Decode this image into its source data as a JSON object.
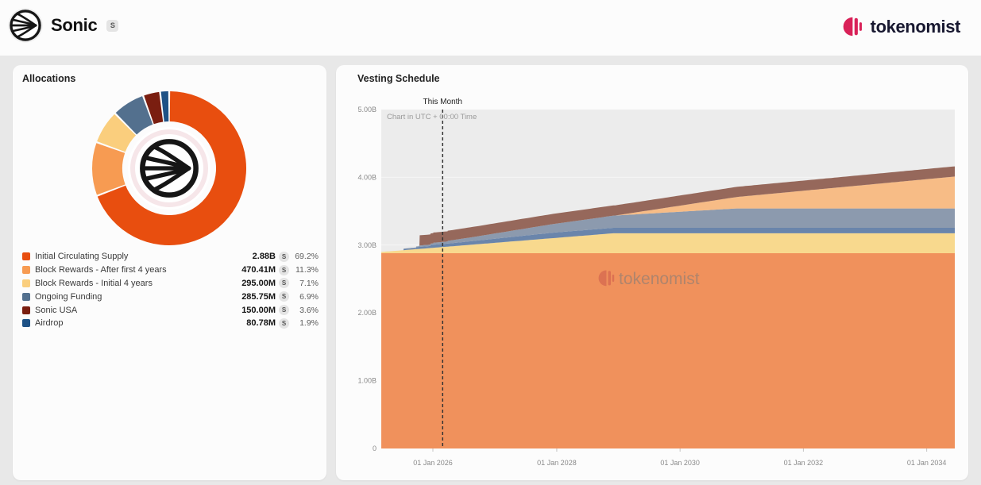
{
  "header": {
    "app_title": "Sonic",
    "app_badge": "S",
    "brand": "tokenomist",
    "brand_color": "#D92158"
  },
  "allocations": {
    "title": "Allocations",
    "token_symbol": "S",
    "items": [
      {
        "label": "Initial Circulating Supply",
        "value": "2.88B",
        "pct": "69.2%",
        "pct_num": 69.2,
        "color": "#E84E0F"
      },
      {
        "label": "Block Rewards - After first 4 years",
        "value": "470.41M",
        "pct": "11.3%",
        "pct_num": 11.3,
        "color": "#F79B52"
      },
      {
        "label": "Block Rewards - Initial 4 years",
        "value": "295.00M",
        "pct": "7.1%",
        "pct_num": 7.1,
        "color": "#FACE7D"
      },
      {
        "label": "Ongoing Funding",
        "value": "285.75M",
        "pct": "6.9%",
        "pct_num": 6.9,
        "color": "#53708E"
      },
      {
        "label": "Sonic USA",
        "value": "150.00M",
        "pct": "3.6%",
        "pct_num": 3.6,
        "color": "#7A1E10"
      },
      {
        "label": "Airdrop",
        "value": "80.78M",
        "pct": "1.9%",
        "pct_num": 1.9,
        "color": "#1E5286"
      }
    ]
  },
  "vesting": {
    "title": "Vesting Schedule",
    "note": "Chart in UTC + 00:00 Time",
    "this_month_label": "This Month",
    "this_month_x": 0.107,
    "watermark": "tokenomist"
  },
  "chart_data": [
    {
      "type": "pie",
      "title": "Allocations",
      "labels": [
        "Initial Circulating Supply",
        "Block Rewards - After first 4 years",
        "Block Rewards - Initial 4 years",
        "Ongoing Funding",
        "Sonic USA",
        "Airdrop"
      ],
      "values_pct": [
        69.2,
        11.3,
        7.1,
        6.9,
        3.6,
        1.9
      ],
      "values_tokens": [
        "2.88B",
        "470.41M",
        "295.00M",
        "285.75M",
        "150.00M",
        "80.78M"
      ],
      "colors": [
        "#E84E0F",
        "#F79B52",
        "#FACE7D",
        "#53708E",
        "#7A1E10",
        "#1E5286"
      ],
      "donut": true,
      "start_angle_deg": 0,
      "clockwise": true
    },
    {
      "type": "area",
      "stacked": true,
      "title": "Vesting Schedule",
      "unit": "B tokens",
      "ylim": [
        0,
        5
      ],
      "grid": true,
      "plot_bg": "#ECECEC",
      "grid_color": "#F6F6F6",
      "y_ticks": [
        {
          "v": 5,
          "label": "5.00B"
        },
        {
          "v": 4,
          "label": "4.00B"
        },
        {
          "v": 3,
          "label": "3.00B"
        },
        {
          "v": 2,
          "label": "2.00B"
        },
        {
          "v": 1,
          "label": "1.00B"
        },
        {
          "v": 0,
          "label": "0"
        }
      ],
      "x_ticks": [
        {
          "x": 0.09,
          "label": "01 Jan 2026"
        },
        {
          "x": 0.306,
          "label": "01 Jan 2028"
        },
        {
          "x": 0.521,
          "label": "01 Jan 2030"
        },
        {
          "x": 0.736,
          "label": "01 Jan 2032"
        },
        {
          "x": 0.951,
          "label": "01 Jan 2034"
        }
      ],
      "x_note": "x is fraction of plotted range (~Mar 2025 to ~Jun 2034); values in billions of S",
      "series": [
        {
          "name": "Initial Circulating Supply",
          "fill": "#F0915C",
          "points": [
            [
              0,
              2.88
            ],
            [
              1,
              2.88
            ]
          ]
        },
        {
          "name": "Block Rewards - Initial 4 years",
          "fill": "#F8D98E",
          "points": [
            [
              0,
              0.019
            ],
            [
              0.405,
              0.295
            ],
            [
              1,
              0.295
            ]
          ]
        },
        {
          "name": "Airdrop",
          "fill": "#6A85AB",
          "points": [
            [
              0,
              0
            ],
            [
              0.0385,
              0
            ],
            [
              0.039,
              0.015
            ],
            [
              0.0605,
              0.015
            ],
            [
              0.061,
              0.03
            ],
            [
              0.0855,
              0.03
            ],
            [
              0.086,
              0.045
            ],
            [
              0.12,
              0.045
            ],
            [
              0.3,
              0.0808
            ],
            [
              1,
              0.0808
            ]
          ]
        },
        {
          "name": "Ongoing Funding",
          "fill": "#8C9AAE",
          "points": [
            [
              0,
              0
            ],
            [
              0.0385,
              0
            ],
            [
              0.039,
              0.01
            ],
            [
              0.0655,
              0.01
            ],
            [
              0.066,
              0.02
            ],
            [
              0.0905,
              0.02
            ],
            [
              0.091,
              0.03
            ],
            [
              0.1155,
              0.03
            ],
            [
              0.116,
              0.04
            ],
            [
              0.16,
              0.058
            ],
            [
              0.62,
              0.28575
            ],
            [
              1,
              0.28575
            ]
          ]
        },
        {
          "name": "Block Rewards - After first 4 years",
          "fill": "#F7BC86",
          "points": [
            [
              0,
              0
            ],
            [
              0.408,
              0
            ],
            [
              1,
              0.4704
            ]
          ]
        },
        {
          "name": "Sonic USA",
          "fill": "#96685B",
          "points": [
            [
              0,
              0
            ],
            [
              0.0665,
              0
            ],
            [
              0.067,
              0.15
            ],
            [
              1,
              0.15
            ]
          ]
        }
      ]
    }
  ]
}
